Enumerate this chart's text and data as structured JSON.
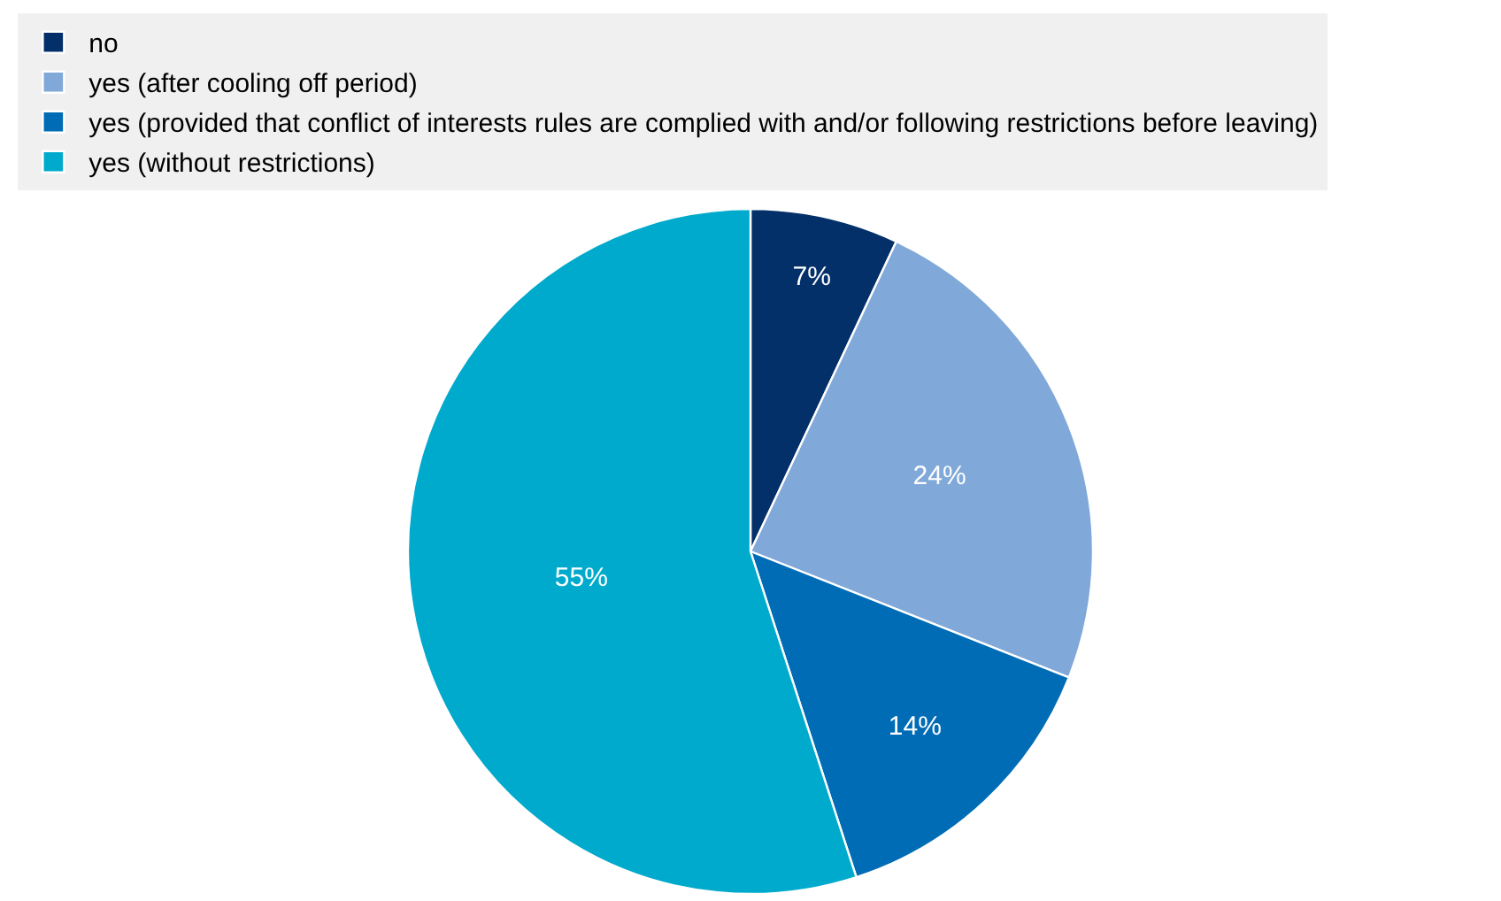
{
  "chart_data": {
    "type": "pie",
    "categories": [
      "no",
      "yes (after cooling off period)",
      "yes (provided that conflict of interests rules are complied with and/or following restrictions before leaving)",
      "yes (without restrictions)"
    ],
    "values": [
      7,
      24,
      14,
      55
    ],
    "value_labels": [
      "7%",
      "24%",
      "14%",
      "55%"
    ],
    "colors": [
      "#04306a",
      "#80a8d8",
      "#006cb5",
      "#00aacc"
    ],
    "legend": "top"
  }
}
